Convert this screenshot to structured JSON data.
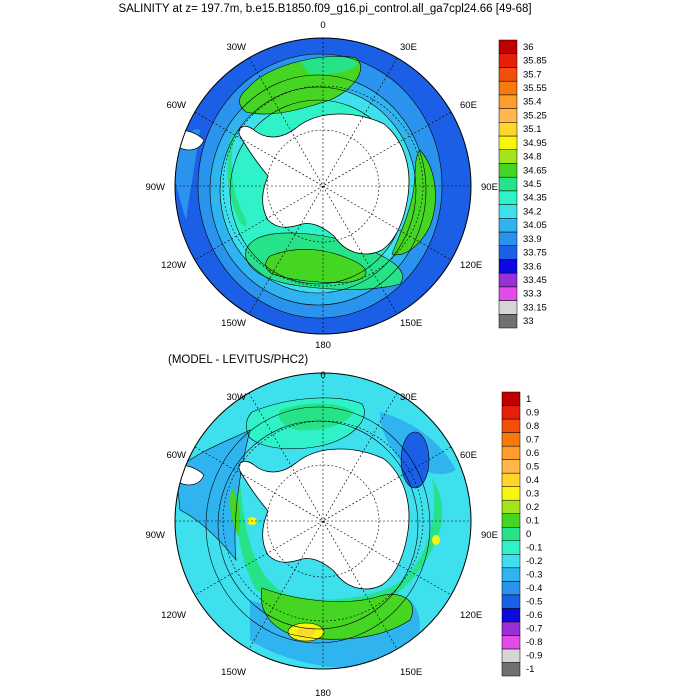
{
  "title": "SALINITY at z= 197.7m, b.e15.B1850.f09_g16.pi_control.all_ga7cpl24.66 [49-68]",
  "subtitle": "(MODEL - LEVITUS/PHC2)",
  "longitude_labels": [
    "0",
    "30E",
    "60E",
    "90E",
    "120E",
    "150E",
    "180",
    "150W",
    "120W",
    "90W",
    "60W",
    "30W"
  ],
  "chart_data": [
    {
      "type": "heatmap",
      "title": "SALINITY at z= 197.7m, b.e15.B1850.f09_g16.pi_control.all_ga7cpl24.66 [49-68]",
      "projection": "south polar stereographic",
      "colorbar": {
        "levels": [
          33,
          33.15,
          33.3,
          33.45,
          33.6,
          33.75,
          33.9,
          34.05,
          34.2,
          34.35,
          34.5,
          34.65,
          34.8,
          34.95,
          35.1,
          35.25,
          35.4,
          35.55,
          35.7,
          35.85,
          36
        ],
        "tick_labels": [
          "36",
          "35.85",
          "35.7",
          "35.55",
          "35.4",
          "35.25",
          "35.1",
          "34.95",
          "34.8",
          "34.65",
          "34.5",
          "34.35",
          "34.2",
          "34.05",
          "33.9",
          "33.75",
          "33.6",
          "33.45",
          "33.3",
          "33.15",
          "33"
        ],
        "colors": [
          "#707070",
          "#d6d6d6",
          "#e14be6",
          "#9b2fd6",
          "#0a0ae0",
          "#1a5fe6",
          "#2a93ee",
          "#2fb4f0",
          "#3ee0ee",
          "#30f2c9",
          "#26e38a",
          "#44d622",
          "#a4e41a",
          "#f6f60e",
          "#ffd62e",
          "#ffb64a",
          "#ff9c2e",
          "#f77a0a",
          "#f0500a",
          "#e61e0a",
          "#c00000"
        ]
      },
      "field_summary": {
        "dominant_band": "33.9-34.05",
        "subpolar_ring": "34.65-34.8",
        "maximum_band": "34.8-34.95"
      }
    },
    {
      "type": "heatmap",
      "title": "(MODEL - LEVITUS/PHC2)",
      "projection": "south polar stereographic",
      "colorbar": {
        "levels": [
          -1,
          -0.9,
          -0.8,
          -0.7,
          -0.6,
          -0.5,
          -0.4,
          -0.3,
          -0.2,
          -0.1,
          0,
          0.1,
          0.2,
          0.3,
          0.4,
          0.5,
          0.6,
          0.7,
          0.8,
          0.9,
          1
        ],
        "tick_labels": [
          "1",
          "0.9",
          "0.8",
          "0.7",
          "0.6",
          "0.5",
          "0.4",
          "0.3",
          "0.2",
          "0.1",
          "0",
          "-0.1",
          "-0.2",
          "-0.3",
          "-0.4",
          "-0.5",
          "-0.6",
          "-0.7",
          "-0.8",
          "-0.9",
          "-1"
        ],
        "colors": [
          "#707070",
          "#d6d6d6",
          "#e14be6",
          "#9b2fd6",
          "#0a0ae0",
          "#1a5fe6",
          "#2a93ee",
          "#2fb4f0",
          "#3ee0ee",
          "#30f2c9",
          "#26e38a",
          "#44d622",
          "#a4e41a",
          "#f6f60e",
          "#ffd62e",
          "#ffb64a",
          "#ff9c2e",
          "#f77a0a",
          "#f0500a",
          "#e61e0a",
          "#c00000"
        ]
      },
      "field_summary": {
        "dominant_band": "-0.2 to -0.1",
        "positive_ring": "0 to 0.2",
        "maximum_band": "0.3 to 0.4"
      }
    }
  ],
  "colors": {
    "land": "#ffffff",
    "coast": "#000000",
    "grid": "#000000"
  }
}
